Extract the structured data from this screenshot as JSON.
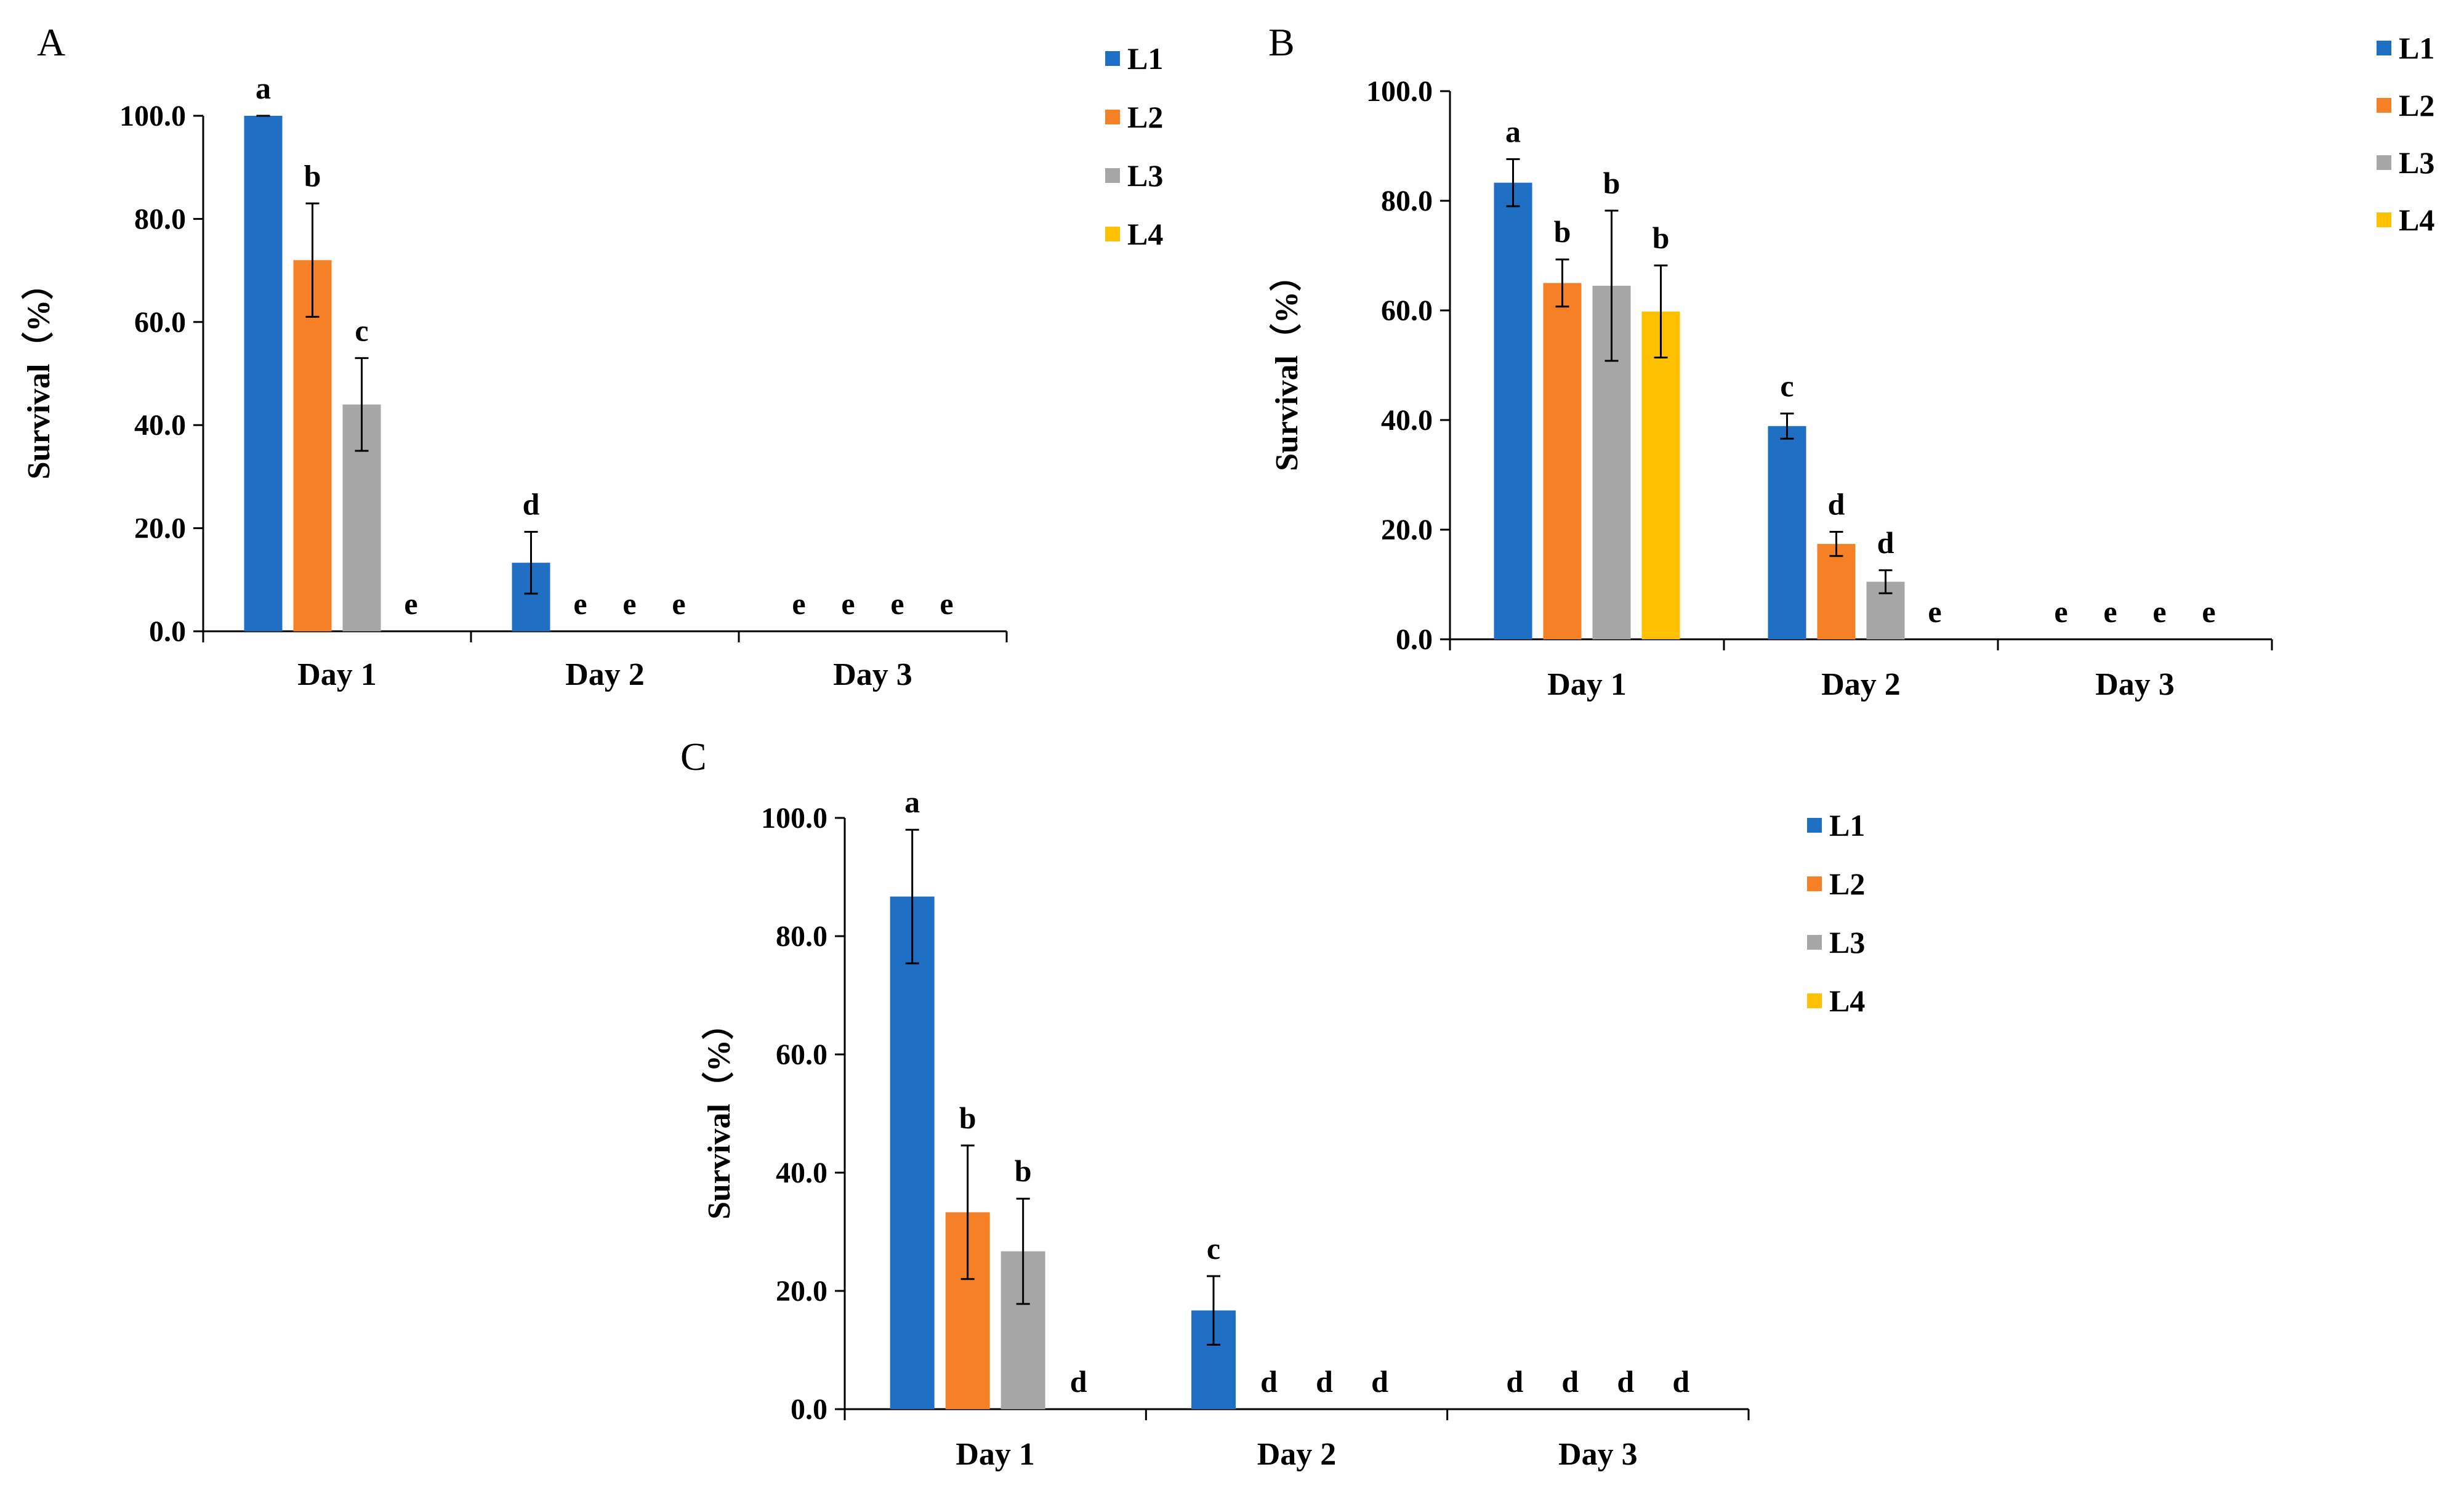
{
  "chart_data": [
    {
      "panel": "A",
      "type": "bar",
      "ylabel": "Survival（%）",
      "yticks": [
        "0.0",
        "20.0",
        "40.0",
        "60.0",
        "80.0",
        "100.0"
      ],
      "ylim": [
        0,
        100
      ],
      "categories": [
        "Day 1",
        "Day 2",
        "Day 3"
      ],
      "series": [
        {
          "name": "L1",
          "color": "#1F6FC5",
          "values": [
            100,
            13.3,
            0
          ],
          "errors": [
            0,
            6,
            0
          ],
          "letters": [
            "a",
            "d",
            "e"
          ]
        },
        {
          "name": "L2",
          "color": "#F58025",
          "values": [
            72,
            0,
            0
          ],
          "errors": [
            11,
            0,
            0
          ],
          "letters": [
            "b",
            "e",
            "e"
          ]
        },
        {
          "name": "L3",
          "color": "#A6A6A6",
          "values": [
            44,
            0,
            0
          ],
          "errors": [
            9,
            0,
            0
          ],
          "letters": [
            "c",
            "e",
            "e"
          ]
        },
        {
          "name": "L4",
          "color": "#FFC000",
          "values": [
            0,
            0,
            0
          ],
          "errors": [
            0,
            0,
            0
          ],
          "letters": [
            "e",
            "e",
            "e"
          ]
        }
      ]
    },
    {
      "panel": "B",
      "type": "bar",
      "ylabel": "Survival（%）",
      "yticks": [
        "0.0",
        "20.0",
        "40.0",
        "60.0",
        "80.0",
        "100.0"
      ],
      "ylim": [
        0,
        100
      ],
      "categories": [
        "Day 1",
        "Day 2",
        "Day 3"
      ],
      "series": [
        {
          "name": "L1",
          "color": "#1F6FC5",
          "values": [
            83.3,
            38.9,
            0
          ],
          "errors": [
            4.3,
            2.3,
            0
          ],
          "letters": [
            "a",
            "c",
            "e"
          ]
        },
        {
          "name": "L2",
          "color": "#F58025",
          "values": [
            65,
            17.4,
            0
          ],
          "errors": [
            4.3,
            2.2,
            0
          ],
          "letters": [
            "b",
            "d",
            "e"
          ]
        },
        {
          "name": "L3",
          "color": "#A6A6A6",
          "values": [
            64.5,
            10.5,
            0
          ],
          "errors": [
            13.7,
            2.1,
            0
          ],
          "letters": [
            "b",
            "d",
            "e"
          ]
        },
        {
          "name": "L4",
          "color": "#FFC000",
          "values": [
            59.8,
            0,
            0
          ],
          "errors": [
            8.4,
            0,
            0
          ],
          "letters": [
            "b",
            "e",
            "e"
          ]
        }
      ]
    },
    {
      "panel": "C",
      "type": "bar",
      "ylabel": "Survival（%）",
      "yticks": [
        "0.0",
        "20.0",
        "40.0",
        "60.0",
        "80.0",
        "100.0"
      ],
      "ylim": [
        0,
        100
      ],
      "categories": [
        "Day 1",
        "Day 2",
        "Day 3"
      ],
      "series": [
        {
          "name": "L1",
          "color": "#1F6FC5",
          "values": [
            86.7,
            16.7,
            0
          ],
          "errors": [
            11.3,
            5.8,
            0
          ],
          "letters": [
            "a",
            "c",
            "d"
          ]
        },
        {
          "name": "L2",
          "color": "#F58025",
          "values": [
            33.3,
            0,
            0
          ],
          "errors": [
            11.3,
            0,
            0
          ],
          "letters": [
            "b",
            "d",
            "d"
          ]
        },
        {
          "name": "L3",
          "color": "#A6A6A6",
          "values": [
            26.7,
            0,
            0
          ],
          "errors": [
            8.9,
            0,
            0
          ],
          "letters": [
            "b",
            "d",
            "d"
          ]
        },
        {
          "name": "L4",
          "color": "#FFC000",
          "values": [
            0,
            0,
            0
          ],
          "errors": [
            0,
            0,
            0
          ],
          "letters": [
            "d",
            "d",
            "d"
          ]
        }
      ]
    }
  ]
}
